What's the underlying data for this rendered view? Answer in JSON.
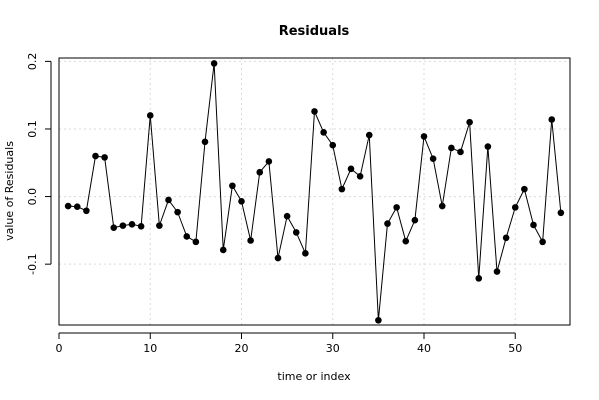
{
  "chart_data": {
    "type": "line",
    "title": "Residuals",
    "xlabel": "time or index",
    "ylabel": "value of Residuals",
    "xlim": [
      0,
      56
    ],
    "ylim": [
      -0.19,
      0.205
    ],
    "x_ticks": [
      0,
      10,
      20,
      30,
      40,
      50
    ],
    "x_tick_labels": [
      "0",
      "10",
      "20",
      "30",
      "40",
      "50"
    ],
    "y_ticks": [
      -0.1,
      0.0,
      0.1,
      0.2
    ],
    "y_tick_labels": [
      "-0.1",
      "0.0",
      "0.1",
      "0.2"
    ],
    "grid": true,
    "markers": "filled circles",
    "series": [
      {
        "x": [
          1,
          2,
          3,
          4,
          5,
          6,
          7,
          8,
          9,
          10,
          11,
          12,
          13,
          14,
          15,
          16,
          17,
          18,
          19,
          20,
          21,
          22,
          23,
          24,
          25,
          26,
          27,
          28,
          29,
          30,
          31,
          32,
          33,
          34,
          35,
          36,
          37,
          38,
          39,
          40,
          41,
          42,
          43,
          44,
          45,
          46,
          47,
          48,
          49,
          50,
          51,
          52,
          53,
          54,
          55
        ],
        "values": [
          -0.014,
          -0.015,
          -0.021,
          0.06,
          0.058,
          -0.046,
          -0.043,
          -0.041,
          -0.044,
          0.12,
          -0.043,
          -0.005,
          -0.023,
          -0.059,
          -0.067,
          0.081,
          0.197,
          -0.079,
          0.016,
          -0.007,
          -0.065,
          0.036,
          0.052,
          -0.091,
          -0.029,
          -0.053,
          -0.084,
          0.126,
          0.095,
          0.076,
          0.011,
          0.041,
          0.03,
          0.091,
          -0.183,
          -0.04,
          -0.016,
          -0.066,
          -0.035,
          0.089,
          0.056,
          -0.014,
          0.072,
          0.066,
          0.11,
          -0.121,
          0.074,
          -0.111,
          -0.061,
          -0.016,
          0.011,
          -0.042,
          -0.067,
          0.114,
          -0.024
        ]
      }
    ]
  }
}
